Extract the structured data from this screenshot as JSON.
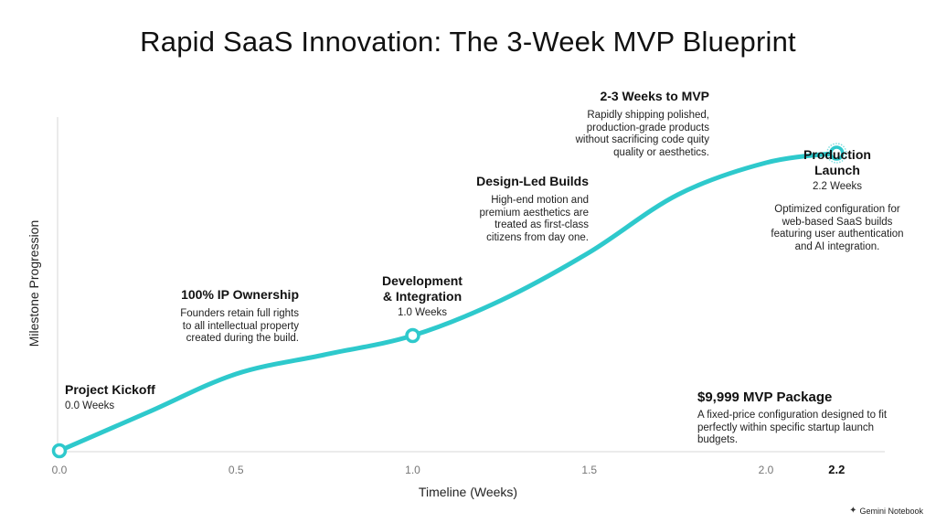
{
  "chart_data": {
    "type": "line",
    "title": "Rapid SaaS Innovation: The 3-Week MVP Blueprint",
    "xlabel": "Timeline (Weeks)",
    "ylabel": "Milestone Progression",
    "xlim": [
      0,
      2.35
    ],
    "ylim": [
      0,
      1
    ],
    "x_ticks": [
      "0.0",
      "0.5",
      "1.0",
      "1.5",
      "2.0",
      "2.2"
    ],
    "x_tick_values": [
      0,
      0.5,
      1.0,
      1.5,
      2.0,
      2.2
    ],
    "series": [
      {
        "color": "#2ec9cc",
        "x": [
          0.0,
          0.25,
          0.5,
          0.75,
          1.0,
          1.25,
          1.5,
          1.75,
          2.0,
          2.2
        ],
        "y": [
          0.0,
          0.12,
          0.24,
          0.3,
          0.36,
          0.47,
          0.62,
          0.8,
          0.9,
          0.93
        ]
      }
    ],
    "milestones": [
      {
        "x": 0.0,
        "y": 0.0
      },
      {
        "x": 1.0,
        "y": 0.36
      },
      {
        "x": 2.2,
        "y": 0.93
      }
    ],
    "grid": false
  },
  "annotations": {
    "kickoff": {
      "title": "Project Kickoff",
      "sub": "0.0 Weeks"
    },
    "ip": {
      "title": "100% IP Ownership",
      "desc": [
        "Founders retain full rights",
        "to all intellectual property",
        "created during the build."
      ]
    },
    "dev": {
      "title": [
        "Development",
        "& Integration"
      ],
      "sub": "1.0 Weeks"
    },
    "design": {
      "title": "Design-Led Builds",
      "desc": [
        "High-end motion and",
        "premium aesthetics are",
        "treated as first-class",
        "citizens from day one."
      ]
    },
    "weeks": {
      "title": "2-3 Weeks to MVP",
      "desc": [
        "Rapidly shipping polished,",
        "production-grade products",
        "without sacrificing code quity",
        "quality or aesthetics."
      ]
    },
    "launch": {
      "title": [
        "Production",
        "Launch"
      ],
      "sub": "2.2 Weeks",
      "desc": [
        "Optimized configuration for",
        "web-based SaaS builds",
        "featuring user authentication",
        "and AI integration."
      ]
    },
    "package": {
      "title": "$9,999 MVP Package",
      "desc": [
        "A fixed-price configuration designed to fit",
        "perfectly within specific startup launch",
        "budgets."
      ]
    }
  },
  "brand": {
    "label": "Gemini Notebook"
  }
}
